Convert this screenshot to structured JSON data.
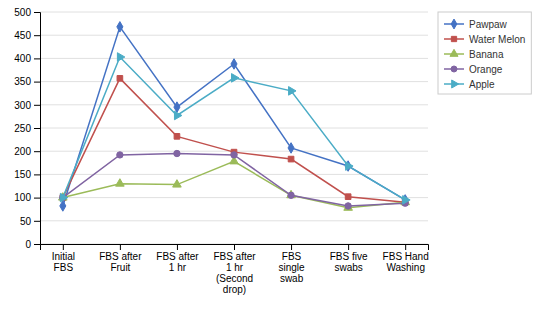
{
  "chart_data": {
    "type": "line",
    "categories": [
      "Initial\nFBS",
      "FBS after\nFruit",
      "FBS after\n1 hr",
      "FBS after\n1 hr\n(Second\ndrop)",
      "FBS\nsingle\nswab",
      "FBS five\nswabs",
      "FBS Hand\nWashing"
    ],
    "series": [
      {
        "name": "Pawpaw",
        "color": "#4472C4",
        "marker": "diamond",
        "values": [
          82,
          468,
          295,
          388,
          207,
          168,
          95
        ]
      },
      {
        "name": "Water Melon",
        "color": "#C0504D",
        "marker": "square",
        "values": [
          100,
          357,
          232,
          198,
          183,
          102,
          90
        ]
      },
      {
        "name": "Banana",
        "color": "#9BBB59",
        "marker": "triangle-up",
        "values": [
          100,
          130,
          128,
          178,
          105,
          78,
          90
        ]
      },
      {
        "name": "Orange",
        "color": "#8064A2",
        "marker": "circle",
        "values": [
          100,
          192,
          195,
          192,
          105,
          82,
          88
        ]
      },
      {
        "name": "Apple",
        "color": "#4BACC6",
        "marker": "triangle-right",
        "values": [
          100,
          403,
          277,
          358,
          330,
          168,
          95
        ]
      }
    ],
    "ylim": [
      0,
      500
    ],
    "yticks": [
      0,
      50,
      100,
      150,
      200,
      250,
      300,
      350,
      400,
      450,
      500
    ],
    "grid": true,
    "legend": "upper right"
  }
}
